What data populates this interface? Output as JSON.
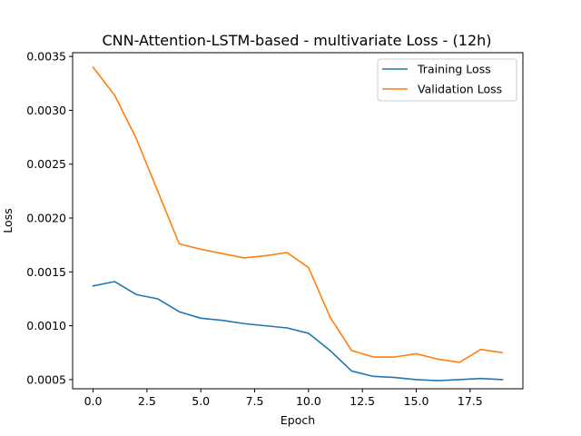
{
  "chart_data": {
    "type": "line",
    "title": "CNN-Attention-LSTM-based - multivariate Loss - (12h)",
    "xlabel": "Epoch",
    "ylabel": "Loss",
    "xlim": [
      -0.95,
      19.95
    ],
    "ylim": [
      0.000415,
      0.003535
    ],
    "x_ticks": [
      0.0,
      2.5,
      5.0,
      7.5,
      10.0,
      12.5,
      15.0,
      17.5
    ],
    "x_tick_labels": [
      "0.0",
      "2.5",
      "5.0",
      "7.5",
      "10.0",
      "12.5",
      "15.0",
      "17.5"
    ],
    "y_ticks": [
      0.0005,
      0.001,
      0.0015,
      0.002,
      0.0025,
      0.003,
      0.0035
    ],
    "y_tick_labels": [
      "0.0005",
      "0.0010",
      "0.0015",
      "0.0020",
      "0.0025",
      "0.0030",
      "0.0035"
    ],
    "grid": false,
    "legend_position": "top-right",
    "x": [
      0,
      1,
      2,
      3,
      4,
      5,
      6,
      7,
      8,
      9,
      10,
      11,
      12,
      13,
      14,
      15,
      16,
      17,
      18,
      19
    ],
    "series": [
      {
        "name": "Training Loss",
        "color": "#1f77b4",
        "values": [
          0.00137,
          0.00141,
          0.00129,
          0.00125,
          0.00113,
          0.00107,
          0.00105,
          0.00102,
          0.001,
          0.00098,
          0.00093,
          0.00077,
          0.00058,
          0.00053,
          0.00052,
          0.0005,
          0.00049,
          0.0005,
          0.00051,
          0.0005
        ]
      },
      {
        "name": "Validation Loss",
        "color": "#ff7f0e",
        "values": [
          0.0034,
          0.00314,
          0.00274,
          0.00225,
          0.00176,
          0.00171,
          0.00167,
          0.00163,
          0.00165,
          0.00168,
          0.00154,
          0.00108,
          0.00077,
          0.00071,
          0.00071,
          0.00074,
          0.00069,
          0.00066,
          0.00078,
          0.00075
        ]
      }
    ]
  }
}
